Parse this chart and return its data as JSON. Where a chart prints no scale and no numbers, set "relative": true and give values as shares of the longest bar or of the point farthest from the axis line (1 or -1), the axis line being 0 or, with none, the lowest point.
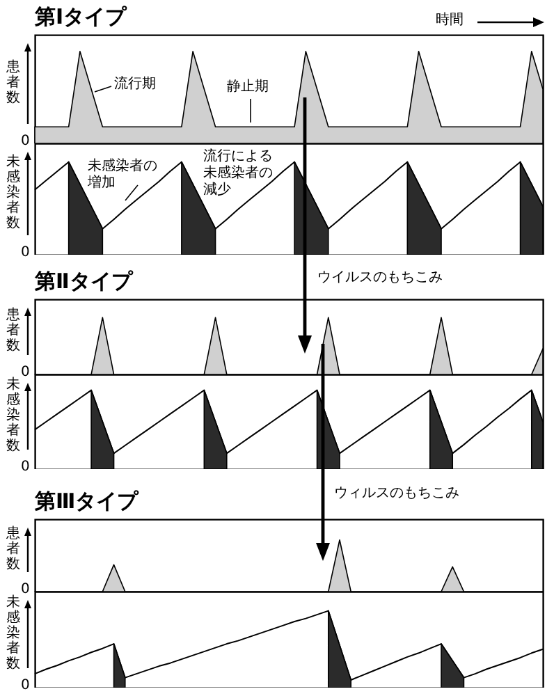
{
  "chart_data": [
    {
      "type": "area",
      "title": "第Ⅰタイプ",
      "ylabel": "患者数",
      "relative": true,
      "color": "#d0d0d0",
      "annotations": [
        "0",
        "時間",
        "流行期",
        "静止期"
      ],
      "categories": [
        null,
        null,
        null,
        null,
        null,
        null,
        null,
        null,
        null,
        null,
        null,
        null,
        null,
        null,
        null,
        null,
        null,
        null,
        null,
        null,
        null,
        null,
        null,
        null,
        null,
        null,
        null,
        null,
        null,
        null,
        null,
        null,
        null,
        null,
        null,
        null,
        null,
        null,
        null,
        null,
        null,
        null,
        null,
        null,
        null,
        null
      ],
      "values": [
        0.18,
        0.18,
        0.18,
        0.18,
        1,
        0.59,
        0.18,
        0.18,
        0.18,
        0.18,
        0.18,
        0.18,
        0.18,
        0.18,
        1,
        0.59,
        0.18,
        0.18,
        0.18,
        0.18,
        0.18,
        0.18,
        0.18,
        0.18,
        1,
        0.59,
        0.18,
        0.18,
        0.18,
        0.18,
        0.18,
        0.18,
        0.18,
        0.18,
        1,
        0.59,
        0.18,
        0.18,
        0.18,
        0.18,
        0.18,
        0.18,
        0.18,
        0.18,
        1,
        0.59
      ]
    },
    {
      "type": "line",
      "ylabel": "未感染者数",
      "relative": true,
      "annotations": [
        "0",
        "未感染者の増加",
        "流行による未感染者の減少"
      ],
      "categories": [
        null,
        null,
        null,
        null,
        null,
        null,
        null,
        null,
        null,
        null,
        null,
        null,
        null,
        null,
        null,
        null,
        null,
        null,
        null,
        null,
        null,
        null,
        null,
        null,
        null,
        null,
        null,
        null,
        null,
        null,
        null,
        null,
        null,
        null,
        null,
        null,
        null,
        null,
        null,
        null,
        null,
        null,
        null,
        null,
        null,
        null
      ],
      "series": [
        {
          "color": "#000000",
          "values": [
            0.7,
            0.8,
            0.9,
            1,
            0.76,
            0.52,
            0.28,
            0.38,
            0.49,
            0.59,
            0.69,
            0.79,
            0.9,
            1,
            0.76,
            0.52,
            0.28,
            0.38,
            0.49,
            0.59,
            0.69,
            0.79,
            0.9,
            1,
            0.76,
            0.52,
            0.28,
            0.38,
            0.49,
            0.59,
            0.69,
            0.79,
            0.9,
            1,
            0.76,
            0.52,
            0.28,
            0.38,
            0.49,
            0.59,
            0.69,
            0.79,
            0.9,
            1,
            0.76,
            0.52
          ]
        },
        {
          "type": "area",
          "color": "#2b2b2b",
          "values": [
            null,
            null,
            null,
            1,
            0.76,
            0.52,
            0.28,
            null,
            null,
            null,
            null,
            null,
            null,
            1,
            0.76,
            0.52,
            0.28,
            null,
            null,
            null,
            null,
            null,
            null,
            1,
            0.76,
            0.52,
            0.28,
            null,
            null,
            null,
            null,
            null,
            null,
            1,
            0.76,
            0.52,
            0.28,
            null,
            null,
            null,
            null,
            null,
            null,
            1,
            0.76,
            0.52
          ]
        }
      ]
    },
    {
      "type": "area",
      "title": "第Ⅱタイプ",
      "ylabel": "患者数",
      "relative": true,
      "color": "#d0d0d0",
      "annotations": [
        "ウイルスのもちこみ",
        "0"
      ],
      "categories": [
        null,
        null,
        null,
        null,
        null,
        null,
        null,
        null,
        null,
        null,
        null,
        null,
        null,
        null,
        null,
        null,
        null,
        null,
        null,
        null,
        null,
        null,
        null,
        null,
        null,
        null,
        null,
        null,
        null,
        null,
        null,
        null,
        null,
        null,
        null,
        null,
        null,
        null,
        null,
        null,
        null,
        null,
        null,
        null,
        null,
        null
      ],
      "values": [
        0,
        0,
        0,
        0,
        0,
        0,
        1,
        0,
        0,
        0,
        0,
        0,
        0,
        0,
        0,
        0,
        1,
        0,
        0,
        0,
        0,
        0,
        0,
        0,
        0,
        0,
        1,
        0,
        0,
        0,
        0,
        0,
        0,
        0,
        0,
        0,
        1,
        0,
        0,
        0,
        0,
        0,
        0,
        0,
        0,
        0.45
      ]
    },
    {
      "type": "line",
      "ylabel": "未感染者数",
      "relative": true,
      "annotations": [
        "0"
      ],
      "categories": [
        null,
        null,
        null,
        null,
        null,
        null,
        null,
        null,
        null,
        null,
        null,
        null,
        null,
        null,
        null,
        null,
        null,
        null,
        null,
        null,
        null,
        null,
        null,
        null,
        null,
        null,
        null,
        null,
        null,
        null,
        null,
        null,
        null,
        null,
        null,
        null,
        null,
        null,
        null,
        null,
        null,
        null,
        null,
        null,
        null,
        null
      ],
      "series": [
        {
          "color": "#000000",
          "values": [
            0.5,
            0.6,
            0.7,
            0.8,
            0.9,
            1,
            0.6,
            0.2,
            0.3,
            0.4,
            0.5,
            0.6,
            0.7,
            0.8,
            0.9,
            1,
            0.6,
            0.2,
            0.3,
            0.4,
            0.5,
            0.6,
            0.7,
            0.8,
            0.9,
            1,
            0.6,
            0.2,
            0.3,
            0.4,
            0.5,
            0.6,
            0.7,
            0.8,
            0.9,
            1,
            0.6,
            0.2,
            0.31,
            0.43,
            0.54,
            0.66,
            0.77,
            0.89,
            1,
            0.6
          ]
        },
        {
          "type": "area",
          "color": "#2b2b2b",
          "values": [
            null,
            null,
            null,
            null,
            null,
            1,
            0.6,
            0.2,
            null,
            null,
            null,
            null,
            null,
            null,
            null,
            1,
            0.6,
            0.2,
            null,
            null,
            null,
            null,
            null,
            null,
            null,
            1,
            0.6,
            0.2,
            null,
            null,
            null,
            null,
            null,
            null,
            null,
            1,
            0.6,
            0.2,
            null,
            null,
            null,
            null,
            null,
            null,
            1,
            0.6
          ]
        }
      ]
    },
    {
      "type": "area",
      "title": "第Ⅲタイプ",
      "ylabel": "患者数",
      "relative": true,
      "color": "#d0d0d0",
      "annotations": [
        "ウィルスのもちこみ",
        "0"
      ],
      "categories": [
        null,
        null,
        null,
        null,
        null,
        null,
        null,
        null,
        null,
        null,
        null,
        null,
        null,
        null,
        null,
        null,
        null,
        null,
        null,
        null,
        null,
        null,
        null,
        null,
        null,
        null,
        null,
        null,
        null,
        null,
        null,
        null,
        null,
        null,
        null,
        null,
        null,
        null,
        null,
        null,
        null,
        null,
        null,
        null,
        null,
        null
      ],
      "values": [
        0,
        0,
        0,
        0,
        0,
        0,
        0,
        0.52,
        0,
        0,
        0,
        0,
        0,
        0,
        0,
        0,
        0,
        0,
        0,
        0,
        0,
        0,
        0,
        0,
        0,
        0,
        0,
        1,
        0,
        0,
        0,
        0,
        0,
        0,
        0,
        0,
        0,
        0.48,
        0,
        0,
        0,
        0,
        0,
        0,
        0,
        0
      ]
    },
    {
      "type": "line",
      "ylabel": "未感染者数",
      "relative": true,
      "annotations": [
        "0"
      ],
      "categories": [
        null,
        null,
        null,
        null,
        null,
        null,
        null,
        null,
        null,
        null,
        null,
        null,
        null,
        null,
        null,
        null,
        null,
        null,
        null,
        null,
        null,
        null,
        null,
        null,
        null,
        null,
        null,
        null,
        null,
        null,
        null,
        null,
        null,
        null,
        null,
        null,
        null,
        null,
        null,
        null,
        null,
        null,
        null,
        null,
        null,
        null
      ],
      "series": [
        {
          "color": "#000000",
          "values": [
            0.18,
            0.24,
            0.29,
            0.35,
            0.4,
            0.46,
            0.51,
            0.57,
            0.13,
            0.18,
            0.23,
            0.28,
            0.32,
            0.37,
            0.42,
            0.47,
            0.52,
            0.57,
            0.61,
            0.66,
            0.71,
            0.76,
            0.81,
            0.86,
            0.9,
            0.95,
            1,
            0.55,
            0.1,
            0.16,
            0.22,
            0.28,
            0.34,
            0.4,
            0.45,
            0.51,
            0.57,
            0.35,
            0.13,
            0.18,
            0.24,
            0.29,
            0.34,
            0.39,
            0.45,
            0.5
          ]
        },
        {
          "type": "area",
          "color": "#2b2b2b",
          "values": [
            null,
            null,
            null,
            null,
            null,
            null,
            null,
            0.57,
            0.13,
            null,
            null,
            null,
            null,
            null,
            null,
            null,
            null,
            null,
            null,
            null,
            null,
            null,
            null,
            null,
            null,
            null,
            1,
            0.55,
            0.1,
            null,
            null,
            null,
            null,
            null,
            null,
            null,
            0.57,
            0.35,
            0.13,
            null,
            null,
            null,
            null,
            null,
            null,
            null
          ]
        }
      ]
    }
  ]
}
